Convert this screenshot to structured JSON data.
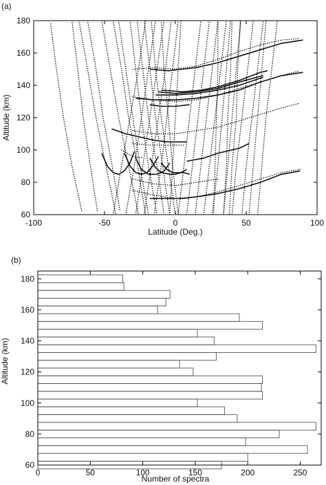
{
  "chart_data": [
    {
      "panel_label": "(a)",
      "type": "scatter",
      "xlabel": "Latitude (Deg.)",
      "ylabel": "Altitude (km)",
      "xlim": [
        -100,
        100
      ],
      "ylim": [
        60,
        180
      ],
      "xticks": [
        -100,
        -50,
        0,
        50,
        100
      ],
      "yticks": [
        60,
        80,
        100,
        120,
        140,
        160,
        180
      ],
      "grid": false,
      "dotted_tracks": [
        [
          [
            -88,
            178
          ],
          [
            -84,
            150
          ],
          [
            -79,
            120
          ],
          [
            -73,
            90
          ],
          [
            -66,
            62
          ]
        ],
        [
          [
            -73,
            180
          ],
          [
            -69,
            150
          ],
          [
            -65,
            120
          ],
          [
            -60,
            90
          ],
          [
            -55,
            62
          ]
        ],
        [
          [
            -68,
            180
          ],
          [
            -62,
            150
          ],
          [
            -56,
            120
          ],
          [
            -49,
            90
          ],
          [
            -42,
            60
          ]
        ],
        [
          [
            -62,
            180
          ],
          [
            -56,
            150
          ],
          [
            -51,
            120
          ],
          [
            -45,
            92
          ],
          [
            -39,
            62
          ]
        ],
        [
          [
            -52,
            180
          ],
          [
            -46,
            150
          ],
          [
            -40,
            120
          ],
          [
            -33,
            90
          ],
          [
            -26,
            60
          ]
        ],
        [
          [
            -44,
            180
          ],
          [
            -38,
            150
          ],
          [
            -33,
            120
          ],
          [
            -27,
            92
          ],
          [
            -21,
            60
          ]
        ],
        [
          [
            -40,
            180
          ],
          [
            -35,
            150
          ],
          [
            -30,
            120
          ],
          [
            -25,
            90
          ],
          [
            -19,
            60
          ]
        ],
        [
          [
            -32,
            180
          ],
          [
            -28,
            150
          ],
          [
            -24,
            120
          ],
          [
            -19,
            90
          ],
          [
            -13,
            60
          ]
        ],
        [
          [
            -27,
            180
          ],
          [
            -23,
            150
          ],
          [
            -19,
            120
          ],
          [
            -13,
            90
          ],
          [
            -8,
            60
          ]
        ],
        [
          [
            -22,
            180
          ],
          [
            -18,
            150
          ],
          [
            -14,
            120
          ],
          [
            -9,
            90
          ],
          [
            -4,
            60
          ]
        ],
        [
          [
            -17,
            180
          ],
          [
            -14,
            150
          ],
          [
            -10,
            120
          ],
          [
            -5,
            90
          ],
          [
            0,
            60
          ]
        ],
        [
          [
            -10,
            180
          ],
          [
            -8,
            150
          ],
          [
            -5,
            120
          ],
          [
            -2,
            90
          ],
          [
            2,
            60
          ]
        ],
        [
          [
            -44,
            60
          ],
          [
            -38,
            90
          ],
          [
            -32,
            120
          ],
          [
            -26,
            150
          ],
          [
            -21,
            180
          ]
        ],
        [
          [
            -35,
            60
          ],
          [
            -29,
            90
          ],
          [
            -24,
            120
          ],
          [
            -19,
            150
          ],
          [
            -14,
            180
          ]
        ],
        [
          [
            -28,
            60
          ],
          [
            -23,
            90
          ],
          [
            -18,
            120
          ],
          [
            -13,
            150
          ],
          [
            -8,
            180
          ]
        ],
        [
          [
            -22,
            60
          ],
          [
            -17,
            90
          ],
          [
            -12,
            120
          ],
          [
            -7,
            150
          ],
          [
            -3,
            180
          ]
        ],
        [
          [
            -15,
            60
          ],
          [
            -10,
            90
          ],
          [
            -6,
            120
          ],
          [
            -2,
            150
          ],
          [
            2,
            180
          ]
        ],
        [
          [
            -4,
            60
          ],
          [
            -2,
            90
          ],
          [
            0,
            120
          ],
          [
            2,
            150
          ],
          [
            4,
            180
          ]
        ],
        [
          [
            2,
            60
          ],
          [
            6,
            90
          ],
          [
            10,
            120
          ],
          [
            14,
            150
          ],
          [
            18,
            180
          ]
        ],
        [
          [
            8,
            60
          ],
          [
            12,
            90
          ],
          [
            16,
            120
          ],
          [
            20,
            150
          ],
          [
            24,
            180
          ]
        ],
        [
          [
            14,
            60
          ],
          [
            18,
            90
          ],
          [
            22,
            120
          ],
          [
            26,
            150
          ],
          [
            30,
            180
          ]
        ],
        [
          [
            20,
            60
          ],
          [
            24,
            90
          ],
          [
            28,
            120
          ],
          [
            32,
            150
          ],
          [
            36,
            180
          ]
        ],
        [
          [
            26,
            60
          ],
          [
            30,
            90
          ],
          [
            33,
            120
          ],
          [
            36,
            150
          ],
          [
            39,
            180
          ]
        ],
        [
          [
            34,
            60
          ],
          [
            37,
            90
          ],
          [
            40,
            120
          ],
          [
            43,
            150
          ],
          [
            46,
            180
          ]
        ],
        [
          [
            40,
            60
          ],
          [
            43,
            90
          ],
          [
            47,
            120
          ],
          [
            51,
            150
          ],
          [
            55,
            180
          ]
        ],
        [
          [
            47,
            60
          ],
          [
            50,
            90
          ],
          [
            54,
            120
          ],
          [
            58,
            150
          ],
          [
            62,
            180
          ]
        ],
        [
          [
            52,
            60
          ],
          [
            55,
            90
          ],
          [
            58,
            120
          ],
          [
            61,
            150
          ],
          [
            64,
            180
          ]
        ],
        [
          [
            58,
            60
          ],
          [
            61,
            90
          ],
          [
            64,
            120
          ],
          [
            68,
            150
          ],
          [
            72,
            180
          ]
        ],
        [
          [
            46,
            180
          ],
          [
            44,
            150
          ],
          [
            43,
            120
          ],
          [
            40,
            90
          ],
          [
            38,
            60
          ]
        ],
        [
          [
            40,
            180
          ],
          [
            39,
            150
          ],
          [
            37,
            120
          ],
          [
            36,
            90
          ],
          [
            34,
            60
          ]
        ],
        [
          [
            30,
            180
          ],
          [
            30,
            150
          ],
          [
            29,
            120
          ],
          [
            28,
            90
          ],
          [
            27,
            60
          ]
        ],
        [
          [
            -30,
            150
          ],
          [
            -15,
            151
          ],
          [
            0,
            150
          ],
          [
            15,
            152
          ],
          [
            30,
            156
          ],
          [
            45,
            161
          ],
          [
            60,
            165
          ],
          [
            75,
            168
          ],
          [
            88,
            169
          ]
        ],
        [
          [
            -30,
            133
          ],
          [
            -15,
            131
          ],
          [
            0,
            130
          ],
          [
            15,
            131
          ],
          [
            30,
            134
          ],
          [
            45,
            138
          ],
          [
            60,
            142
          ],
          [
            75,
            146
          ],
          [
            88,
            149
          ]
        ],
        [
          [
            -30,
            112
          ],
          [
            -15,
            110
          ],
          [
            0,
            110
          ],
          [
            15,
            112
          ],
          [
            30,
            114
          ],
          [
            45,
            118
          ],
          [
            60,
            122
          ],
          [
            75,
            126
          ],
          [
            88,
            129
          ]
        ],
        [
          [
            -30,
            75
          ],
          [
            -15,
            72
          ],
          [
            0,
            70
          ],
          [
            15,
            71
          ],
          [
            30,
            74
          ],
          [
            45,
            78
          ],
          [
            60,
            82
          ],
          [
            75,
            86
          ],
          [
            88,
            88
          ]
        ],
        [
          [
            -30,
            104
          ],
          [
            -18,
            103
          ],
          [
            -6,
            103
          ],
          [
            6,
            103
          ]
        ],
        [
          [
            -30,
            82
          ],
          [
            -15,
            79
          ],
          [
            0,
            78
          ],
          [
            15,
            80
          ],
          [
            30,
            82
          ]
        ],
        [
          [
            -38,
            100
          ],
          [
            -30,
            96
          ],
          [
            -22,
            95
          ]
        ]
      ],
      "solid_curves": [
        [
          [
            -18,
            150
          ],
          [
            -5,
            149
          ],
          [
            5,
            150
          ],
          [
            15,
            151
          ],
          [
            30,
            154
          ],
          [
            45,
            158
          ],
          [
            60,
            162
          ],
          [
            75,
            166
          ],
          [
            90,
            168
          ]
        ],
        [
          [
            -18,
            128
          ],
          [
            -10,
            127
          ],
          [
            0,
            127
          ],
          [
            10,
            128
          ]
        ],
        [
          [
            -28,
            132
          ],
          [
            -15,
            131
          ],
          [
            0,
            131
          ],
          [
            15,
            132
          ],
          [
            30,
            134
          ],
          [
            45,
            137
          ],
          [
            60,
            142
          ],
          [
            75,
            146
          ],
          [
            90,
            148
          ]
        ],
        [
          [
            -14,
            134
          ],
          [
            0,
            134
          ],
          [
            15,
            135
          ],
          [
            30,
            137
          ],
          [
            45,
            140
          ],
          [
            62,
            145
          ]
        ],
        [
          [
            -12,
            136
          ],
          [
            0,
            135
          ],
          [
            15,
            136
          ],
          [
            30,
            138
          ],
          [
            45,
            142
          ],
          [
            62,
            146
          ]
        ],
        [
          [
            -10,
            137
          ],
          [
            5,
            136
          ],
          [
            18,
            137
          ],
          [
            30,
            139
          ],
          [
            45,
            143
          ],
          [
            60,
            148
          ],
          [
            65,
            149
          ]
        ],
        [
          [
            -45,
            113
          ],
          [
            -35,
            110
          ],
          [
            -25,
            108
          ],
          [
            -15,
            106
          ],
          [
            -5,
            105
          ],
          [
            5,
            105
          ],
          [
            8,
            105
          ]
        ],
        [
          [
            8,
            93
          ],
          [
            20,
            95
          ],
          [
            30,
            98
          ],
          [
            45,
            101
          ],
          [
            52,
            104
          ]
        ],
        [
          [
            -18,
            70
          ],
          [
            -5,
            70
          ],
          [
            5,
            70
          ],
          [
            15,
            71
          ],
          [
            30,
            73
          ],
          [
            45,
            76
          ],
          [
            60,
            80
          ],
          [
            75,
            85
          ],
          [
            88,
            87
          ]
        ],
        [
          [
            -52,
            98
          ],
          [
            -48,
            90
          ],
          [
            -44,
            86
          ],
          [
            -40,
            85
          ],
          [
            -36,
            87
          ],
          [
            -32,
            92
          ],
          [
            -29,
            99
          ]
        ],
        [
          [
            -36,
            98
          ],
          [
            -32,
            90
          ],
          [
            -28,
            86
          ],
          [
            -24,
            85
          ],
          [
            -20,
            86
          ],
          [
            -16,
            90
          ],
          [
            -12,
            96
          ]
        ],
        [
          [
            -28,
            95
          ],
          [
            -24,
            88
          ],
          [
            -19,
            85
          ],
          [
            -13,
            85
          ],
          [
            -8,
            87
          ],
          [
            -4,
            92
          ]
        ],
        [
          [
            -18,
            95
          ],
          [
            -14,
            89
          ],
          [
            -10,
            86
          ],
          [
            -4,
            85
          ],
          [
            0,
            85
          ],
          [
            4,
            86
          ],
          [
            8,
            88
          ]
        ],
        [
          [
            -10,
            92
          ],
          [
            -6,
            88
          ],
          [
            -2,
            86
          ],
          [
            2,
            86
          ],
          [
            6,
            86
          ],
          [
            10,
            85
          ]
        ]
      ]
    },
    {
      "panel_label": "(b)",
      "type": "bar",
      "orientation": "horizontal",
      "xlabel": "Number of spectra",
      "ylabel": "Altitude (km)",
      "xlim": [
        0,
        270
      ],
      "ylim": [
        60,
        185
      ],
      "xticks": [
        0,
        50,
        100,
        150,
        200,
        250
      ],
      "yticks": [
        60,
        80,
        100,
        120,
        140,
        160,
        180
      ],
      "grid": false,
      "bin_width": 5,
      "categories": [
        60,
        65,
        70,
        75,
        80,
        85,
        90,
        95,
        100,
        105,
        110,
        115,
        120,
        125,
        130,
        135,
        140,
        145,
        150,
        155,
        160,
        165,
        170,
        175,
        180
      ],
      "values": [
        175,
        200,
        257,
        198,
        230,
        265,
        190,
        178,
        152,
        214,
        213,
        214,
        148,
        135,
        170,
        265,
        168,
        152,
        214,
        192,
        114,
        122,
        126,
        82,
        81
      ]
    }
  ]
}
